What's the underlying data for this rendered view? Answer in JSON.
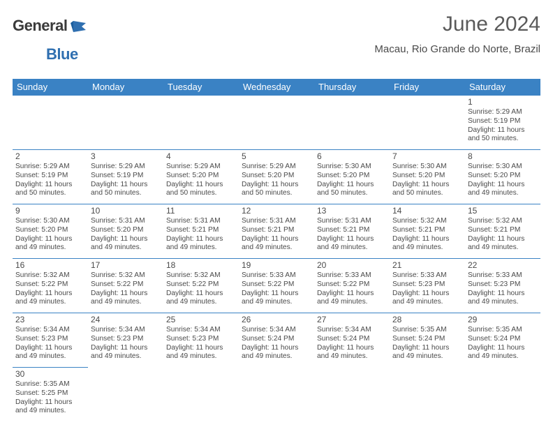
{
  "logo": {
    "word1": "General",
    "word2": "Blue"
  },
  "title": "June 2024",
  "subtitle": "Macau, Rio Grande do Norte, Brazil",
  "colors": {
    "header_bg": "#3a82c4",
    "header_text": "#ffffff",
    "border": "#3a82c4",
    "text": "#4a4a4a",
    "logo_dark": "#3a3a3a",
    "logo_blue": "#2f6fb0",
    "page_bg": "#ffffff"
  },
  "typography": {
    "title_fontsize": 30,
    "subtitle_fontsize": 15,
    "header_fontsize": 13,
    "daynum_fontsize": 12,
    "body_fontsize": 10.5
  },
  "day_headers": [
    "Sunday",
    "Monday",
    "Tuesday",
    "Wednesday",
    "Thursday",
    "Friday",
    "Saturday"
  ],
  "weeks": [
    [
      null,
      null,
      null,
      null,
      null,
      null,
      {
        "n": "1",
        "sr": "Sunrise: 5:29 AM",
        "ss": "Sunset: 5:19 PM",
        "d1": "Daylight: 11 hours",
        "d2": "and 50 minutes."
      }
    ],
    [
      {
        "n": "2",
        "sr": "Sunrise: 5:29 AM",
        "ss": "Sunset: 5:19 PM",
        "d1": "Daylight: 11 hours",
        "d2": "and 50 minutes."
      },
      {
        "n": "3",
        "sr": "Sunrise: 5:29 AM",
        "ss": "Sunset: 5:19 PM",
        "d1": "Daylight: 11 hours",
        "d2": "and 50 minutes."
      },
      {
        "n": "4",
        "sr": "Sunrise: 5:29 AM",
        "ss": "Sunset: 5:20 PM",
        "d1": "Daylight: 11 hours",
        "d2": "and 50 minutes."
      },
      {
        "n": "5",
        "sr": "Sunrise: 5:29 AM",
        "ss": "Sunset: 5:20 PM",
        "d1": "Daylight: 11 hours",
        "d2": "and 50 minutes."
      },
      {
        "n": "6",
        "sr": "Sunrise: 5:30 AM",
        "ss": "Sunset: 5:20 PM",
        "d1": "Daylight: 11 hours",
        "d2": "and 50 minutes."
      },
      {
        "n": "7",
        "sr": "Sunrise: 5:30 AM",
        "ss": "Sunset: 5:20 PM",
        "d1": "Daylight: 11 hours",
        "d2": "and 50 minutes."
      },
      {
        "n": "8",
        "sr": "Sunrise: 5:30 AM",
        "ss": "Sunset: 5:20 PM",
        "d1": "Daylight: 11 hours",
        "d2": "and 49 minutes."
      }
    ],
    [
      {
        "n": "9",
        "sr": "Sunrise: 5:30 AM",
        "ss": "Sunset: 5:20 PM",
        "d1": "Daylight: 11 hours",
        "d2": "and 49 minutes."
      },
      {
        "n": "10",
        "sr": "Sunrise: 5:31 AM",
        "ss": "Sunset: 5:20 PM",
        "d1": "Daylight: 11 hours",
        "d2": "and 49 minutes."
      },
      {
        "n": "11",
        "sr": "Sunrise: 5:31 AM",
        "ss": "Sunset: 5:21 PM",
        "d1": "Daylight: 11 hours",
        "d2": "and 49 minutes."
      },
      {
        "n": "12",
        "sr": "Sunrise: 5:31 AM",
        "ss": "Sunset: 5:21 PM",
        "d1": "Daylight: 11 hours",
        "d2": "and 49 minutes."
      },
      {
        "n": "13",
        "sr": "Sunrise: 5:31 AM",
        "ss": "Sunset: 5:21 PM",
        "d1": "Daylight: 11 hours",
        "d2": "and 49 minutes."
      },
      {
        "n": "14",
        "sr": "Sunrise: 5:32 AM",
        "ss": "Sunset: 5:21 PM",
        "d1": "Daylight: 11 hours",
        "d2": "and 49 minutes."
      },
      {
        "n": "15",
        "sr": "Sunrise: 5:32 AM",
        "ss": "Sunset: 5:21 PM",
        "d1": "Daylight: 11 hours",
        "d2": "and 49 minutes."
      }
    ],
    [
      {
        "n": "16",
        "sr": "Sunrise: 5:32 AM",
        "ss": "Sunset: 5:22 PM",
        "d1": "Daylight: 11 hours",
        "d2": "and 49 minutes."
      },
      {
        "n": "17",
        "sr": "Sunrise: 5:32 AM",
        "ss": "Sunset: 5:22 PM",
        "d1": "Daylight: 11 hours",
        "d2": "and 49 minutes."
      },
      {
        "n": "18",
        "sr": "Sunrise: 5:32 AM",
        "ss": "Sunset: 5:22 PM",
        "d1": "Daylight: 11 hours",
        "d2": "and 49 minutes."
      },
      {
        "n": "19",
        "sr": "Sunrise: 5:33 AM",
        "ss": "Sunset: 5:22 PM",
        "d1": "Daylight: 11 hours",
        "d2": "and 49 minutes."
      },
      {
        "n": "20",
        "sr": "Sunrise: 5:33 AM",
        "ss": "Sunset: 5:22 PM",
        "d1": "Daylight: 11 hours",
        "d2": "and 49 minutes."
      },
      {
        "n": "21",
        "sr": "Sunrise: 5:33 AM",
        "ss": "Sunset: 5:23 PM",
        "d1": "Daylight: 11 hours",
        "d2": "and 49 minutes."
      },
      {
        "n": "22",
        "sr": "Sunrise: 5:33 AM",
        "ss": "Sunset: 5:23 PM",
        "d1": "Daylight: 11 hours",
        "d2": "and 49 minutes."
      }
    ],
    [
      {
        "n": "23",
        "sr": "Sunrise: 5:34 AM",
        "ss": "Sunset: 5:23 PM",
        "d1": "Daylight: 11 hours",
        "d2": "and 49 minutes."
      },
      {
        "n": "24",
        "sr": "Sunrise: 5:34 AM",
        "ss": "Sunset: 5:23 PM",
        "d1": "Daylight: 11 hours",
        "d2": "and 49 minutes."
      },
      {
        "n": "25",
        "sr": "Sunrise: 5:34 AM",
        "ss": "Sunset: 5:23 PM",
        "d1": "Daylight: 11 hours",
        "d2": "and 49 minutes."
      },
      {
        "n": "26",
        "sr": "Sunrise: 5:34 AM",
        "ss": "Sunset: 5:24 PM",
        "d1": "Daylight: 11 hours",
        "d2": "and 49 minutes."
      },
      {
        "n": "27",
        "sr": "Sunrise: 5:34 AM",
        "ss": "Sunset: 5:24 PM",
        "d1": "Daylight: 11 hours",
        "d2": "and 49 minutes."
      },
      {
        "n": "28",
        "sr": "Sunrise: 5:35 AM",
        "ss": "Sunset: 5:24 PM",
        "d1": "Daylight: 11 hours",
        "d2": "and 49 minutes."
      },
      {
        "n": "29",
        "sr": "Sunrise: 5:35 AM",
        "ss": "Sunset: 5:24 PM",
        "d1": "Daylight: 11 hours",
        "d2": "and 49 minutes."
      }
    ],
    [
      {
        "n": "30",
        "sr": "Sunrise: 5:35 AM",
        "ss": "Sunset: 5:25 PM",
        "d1": "Daylight: 11 hours",
        "d2": "and 49 minutes."
      },
      null,
      null,
      null,
      null,
      null,
      null
    ]
  ]
}
